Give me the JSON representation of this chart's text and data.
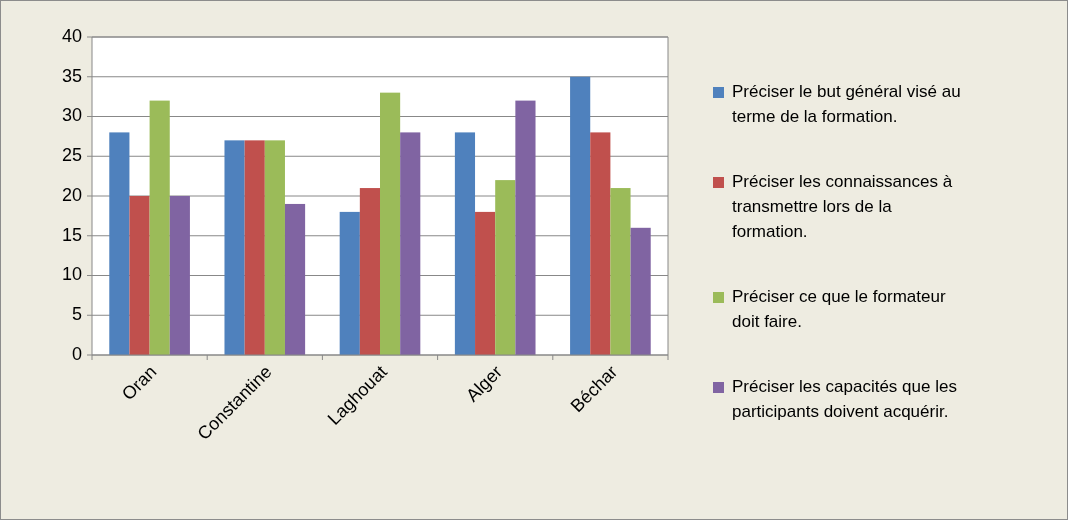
{
  "chart_data": {
    "type": "bar",
    "categories": [
      "Oran",
      "Constantine",
      "Laghouat",
      "Alger",
      "Béchar"
    ],
    "series": [
      {
        "name": "Préciser le but général visé au terme de la formation.",
        "color": "#4f81bd",
        "values": [
          28,
          27,
          18,
          28,
          35
        ]
      },
      {
        "name": "Préciser les connaissances à transmettre lors de la formation.",
        "color": "#c0504d",
        "values": [
          20,
          27,
          21,
          18,
          28
        ]
      },
      {
        "name": "Préciser ce que le formateur doit faire.",
        "color": "#9bbb59",
        "values": [
          32,
          27,
          33,
          22,
          21
        ]
      },
      {
        "name": "Préciser les capacités que les participants doivent acquérir.",
        "color": "#8064a2",
        "values": [
          20,
          19,
          28,
          32,
          16
        ]
      }
    ],
    "ylim": [
      0,
      40
    ],
    "yticks": [
      0,
      5,
      10,
      15,
      20,
      25,
      30,
      35,
      40
    ],
    "grid": "y",
    "legend": "right"
  }
}
